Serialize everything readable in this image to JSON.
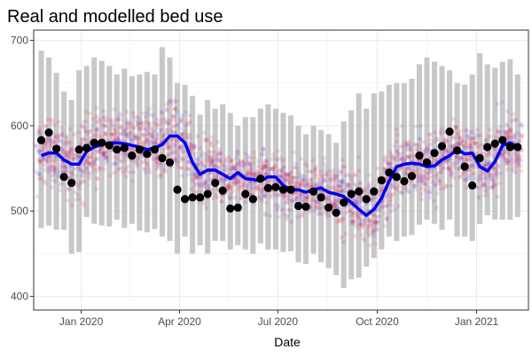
{
  "chart_data": {
    "type": "scatter",
    "title": "Real and modelled bed use",
    "xlabel": "Date",
    "ylabel": "",
    "x_ticks": [
      "Jan 2020",
      "Apr 2020",
      "Jul 2020",
      "Oct 2020",
      "Jan 2021"
    ],
    "x_tick_dates": [
      "2020-01-01",
      "2020-04-01",
      "2020-07-01",
      "2020-10-01",
      "2021-01-01"
    ],
    "xlim": [
      "2019-11-18",
      "2021-02-18"
    ],
    "y_ticks": [
      400,
      500,
      600,
      700
    ],
    "ylim": [
      384,
      712
    ],
    "grid": true,
    "colors": {
      "model_line": "#0000ee",
      "real_points": "#000000",
      "range_bars": "#bebebe",
      "sim_red": "#e0002a",
      "sim_purple": "#a00090",
      "sim_blue": "#4040ff"
    },
    "weeks": [
      "2019-11-25",
      "2019-12-02",
      "2019-12-09",
      "2019-12-16",
      "2019-12-23",
      "2019-12-30",
      "2020-01-06",
      "2020-01-13",
      "2020-01-20",
      "2020-01-27",
      "2020-02-03",
      "2020-02-10",
      "2020-02-17",
      "2020-02-24",
      "2020-03-02",
      "2020-03-09",
      "2020-03-16",
      "2020-03-23",
      "2020-03-30",
      "2020-04-06",
      "2020-04-13",
      "2020-04-20",
      "2020-04-27",
      "2020-05-04",
      "2020-05-11",
      "2020-05-18",
      "2020-05-25",
      "2020-06-01",
      "2020-06-08",
      "2020-06-15",
      "2020-06-22",
      "2020-06-29",
      "2020-07-06",
      "2020-07-13",
      "2020-07-20",
      "2020-07-27",
      "2020-08-03",
      "2020-08-10",
      "2020-08-17",
      "2020-08-24",
      "2020-08-31",
      "2020-09-07",
      "2020-09-14",
      "2020-09-21",
      "2020-09-28",
      "2020-10-05",
      "2020-10-12",
      "2020-10-19",
      "2020-10-26",
      "2020-11-02",
      "2020-11-09",
      "2020-11-16",
      "2020-11-23",
      "2020-11-30",
      "2020-12-07",
      "2020-12-14",
      "2020-12-21",
      "2020-12-28",
      "2021-01-04",
      "2021-01-11",
      "2021-01-18",
      "2021-01-25",
      "2021-02-01",
      "2021-02-08"
    ],
    "series": [
      {
        "values": [
          565,
          568,
          568,
          560,
          555,
          555,
          570,
          575,
          578,
          580,
          580,
          579,
          577,
          575,
          572,
          574,
          578,
          588,
          588,
          580,
          557,
          543,
          548,
          548,
          543,
          538,
          545,
          538,
          537,
          535,
          540,
          540,
          530,
          525,
          525,
          522,
          525,
          527,
          522,
          520,
          517,
          510,
          502,
          495,
          502,
          515,
          535,
          552,
          555,
          556,
          555,
          552,
          553,
          560,
          565,
          572,
          567,
          568,
          552,
          547,
          558,
          577,
          580,
          575
        ]
      },
      {
        "values": [
          583,
          592,
          573,
          540,
          533,
          572,
          574,
          580,
          580,
          577,
          572,
          574,
          565,
          572,
          567,
          572,
          562,
          557,
          525,
          514,
          516,
          516,
          520,
          533,
          524,
          503,
          504,
          520,
          514,
          538,
          527,
          528,
          525,
          525,
          506,
          505,
          523,
          516,
          504,
          498,
          510,
          520,
          523,
          514,
          523,
          536,
          545,
          540,
          535,
          541,
          565,
          557,
          568,
          576,
          593,
          571,
          552,
          530,
          562,
          575,
          579,
          583,
          575,
          575
        ]
      },
      {
        "lower": [
          480,
          483,
          478,
          478,
          450,
          452,
          493,
          485,
          483,
          482,
          490,
          480,
          485,
          477,
          475,
          479,
          470,
          465,
          450,
          470,
          450,
          460,
          450,
          465,
          465,
          455,
          460,
          455,
          450,
          462,
          455,
          455,
          452,
          453,
          440,
          438,
          450,
          440,
          433,
          425,
          410,
          420,
          422,
          435,
          445,
          455,
          470,
          465,
          470,
          472,
          484,
          490,
          485,
          478,
          490,
          470,
          470,
          465,
          485,
          495,
          490,
          490,
          490,
          493
        ],
        "upper": [
          688,
          680,
          662,
          640,
          630,
          665,
          670,
          680,
          676,
          670,
          660,
          667,
          658,
          660,
          663,
          660,
          692,
          680,
          650,
          648,
          635,
          613,
          630,
          620,
          625,
          615,
          600,
          610,
          610,
          620,
          625,
          620,
          615,
          612,
          600,
          590,
          600,
          595,
          590,
          580,
          605,
          618,
          638,
          620,
          638,
          640,
          648,
          650,
          650,
          655,
          672,
          680,
          675,
          670,
          665,
          650,
          648,
          660,
          685,
          672,
          668,
          675,
          678,
          660
        ]
      }
    ]
  }
}
